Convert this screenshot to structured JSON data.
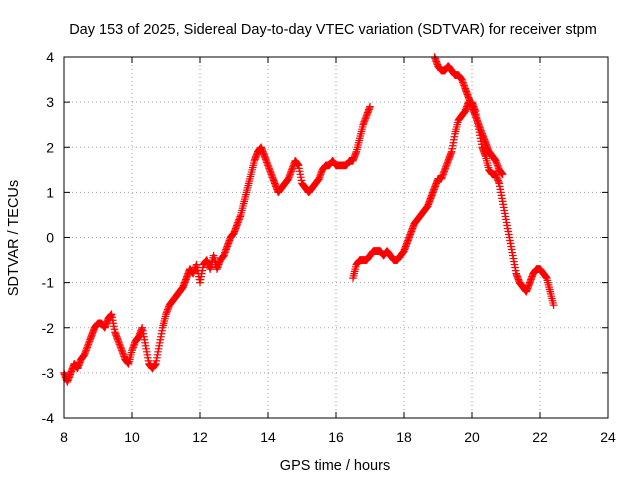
{
  "chart_data": {
    "type": "scatter",
    "title": "Day 153 of 2025, Sidereal Day-to-day VTEC variation (SDTVAR) for receiver stpm",
    "xlabel": "GPS time / hours",
    "ylabel": "SDTVAR / TECUs",
    "xlim": [
      8,
      24
    ],
    "ylim": [
      -4,
      4
    ],
    "xticks": [
      "8",
      "10",
      "12",
      "14",
      "16",
      "18",
      "20",
      "22",
      "24"
    ],
    "yticks": [
      "4",
      "3",
      "2",
      "1",
      "0",
      "-1",
      "-2",
      "-3",
      "-4"
    ],
    "grid": true,
    "marker": "+",
    "color": "#ff0000",
    "series": [
      {
        "x": [
          8.0,
          8.1,
          8.2,
          8.3,
          8.4,
          8.5,
          8.6,
          8.7,
          8.8,
          8.9,
          9.0,
          9.1,
          9.2,
          9.3,
          9.4,
          9.5,
          9.6,
          9.7,
          9.8,
          9.9,
          10.0,
          10.1,
          10.2,
          10.3,
          10.4,
          10.5,
          10.6,
          10.7,
          10.8,
          10.9,
          11.0,
          11.1,
          11.2,
          11.3,
          11.4,
          11.5,
          11.6,
          11.7,
          11.8,
          11.9,
          12.0,
          12.1,
          12.2,
          12.3,
          12.4,
          12.5,
          12.6,
          12.7,
          12.8,
          12.9,
          13.0,
          13.1,
          13.2,
          13.3,
          13.4,
          13.5,
          13.6,
          13.7,
          13.8,
          13.9,
          14.0,
          14.1,
          14.2,
          14.3,
          14.4,
          14.5,
          14.6,
          14.7,
          14.8,
          14.9,
          15.0,
          15.1,
          15.2,
          15.3,
          15.4,
          15.5,
          15.6,
          15.7,
          15.8,
          15.9,
          16.0,
          16.1,
          16.2,
          16.3,
          16.4,
          16.5,
          16.6,
          16.7,
          16.8,
          16.9,
          17.0
        ],
        "y": [
          -3.0,
          -3.2,
          -3.0,
          -2.8,
          -2.9,
          -2.7,
          -2.6,
          -2.4,
          -2.2,
          -2.0,
          -1.9,
          -1.9,
          -2.0,
          -1.8,
          -1.7,
          -2.1,
          -2.3,
          -2.5,
          -2.7,
          -2.8,
          -2.5,
          -2.3,
          -2.2,
          -2.0,
          -2.4,
          -2.8,
          -2.9,
          -2.8,
          -2.4,
          -2.0,
          -1.7,
          -1.5,
          -1.4,
          -1.3,
          -1.2,
          -1.1,
          -0.9,
          -0.7,
          -0.8,
          -0.6,
          -1.0,
          -0.6,
          -0.5,
          -0.7,
          -0.4,
          -0.7,
          -0.5,
          -0.4,
          -0.2,
          0.0,
          0.1,
          0.3,
          0.5,
          0.8,
          1.1,
          1.4,
          1.7,
          1.9,
          2.0,
          1.8,
          1.6,
          1.4,
          1.2,
          1.0,
          1.1,
          1.2,
          1.3,
          1.5,
          1.7,
          1.6,
          1.2,
          1.1,
          1.0,
          1.1,
          1.2,
          1.3,
          1.5,
          1.6,
          1.6,
          1.7,
          1.6,
          1.6,
          1.6,
          1.6,
          1.7,
          1.7,
          1.9,
          2.2,
          2.5,
          2.7,
          2.9
        ]
      },
      {
        "x": [
          16.5,
          16.6,
          16.7,
          16.8,
          16.9,
          17.0,
          17.1,
          17.2,
          17.3,
          17.4,
          17.5,
          17.6,
          17.7,
          17.8,
          17.9,
          18.0,
          18.1,
          18.2,
          18.3,
          18.4,
          18.5,
          18.6,
          18.7,
          18.8,
          18.9,
          19.0,
          19.1,
          19.2,
          19.3,
          19.4,
          19.5,
          19.6,
          19.7,
          19.8,
          19.9,
          20.0,
          20.1,
          20.2,
          20.3,
          20.4,
          20.5,
          20.6,
          20.7,
          20.8,
          20.9,
          21.0,
          21.1,
          21.2,
          21.3,
          21.4,
          21.5,
          21.6,
          21.7,
          21.8,
          21.9,
          22.0,
          22.1,
          22.2,
          22.3,
          22.4
        ],
        "y": [
          -0.9,
          -0.6,
          -0.5,
          -0.5,
          -0.5,
          -0.4,
          -0.3,
          -0.3,
          -0.3,
          -0.4,
          -0.3,
          -0.4,
          -0.5,
          -0.5,
          -0.4,
          -0.3,
          -0.1,
          0.1,
          0.3,
          0.4,
          0.5,
          0.6,
          0.7,
          0.9,
          1.1,
          1.3,
          1.3,
          1.5,
          1.7,
          1.9,
          2.3,
          2.6,
          2.7,
          2.8,
          3.0,
          3.0,
          2.8,
          2.4,
          2.0,
          1.8,
          1.5,
          1.4,
          1.4,
          1.2,
          0.8,
          0.4,
          0.0,
          -0.4,
          -0.8,
          -1.0,
          -1.1,
          -1.2,
          -1.0,
          -0.8,
          -0.7,
          -0.7,
          -0.8,
          -0.9,
          -1.2,
          -1.5
        ]
      },
      {
        "x": [
          18.9,
          19.0,
          19.1,
          19.2,
          19.3,
          19.4,
          19.5,
          19.6,
          19.7,
          19.8,
          19.9,
          20.0,
          20.1,
          20.2,
          20.3,
          20.4,
          20.5,
          20.6,
          20.7,
          20.8,
          20.9
        ],
        "y": [
          4.0,
          3.8,
          3.7,
          3.7,
          3.8,
          3.7,
          3.6,
          3.6,
          3.5,
          3.3,
          3.1,
          2.9,
          2.7,
          2.5,
          2.3,
          2.1,
          1.9,
          1.8,
          1.7,
          1.5,
          1.4
        ]
      }
    ]
  }
}
